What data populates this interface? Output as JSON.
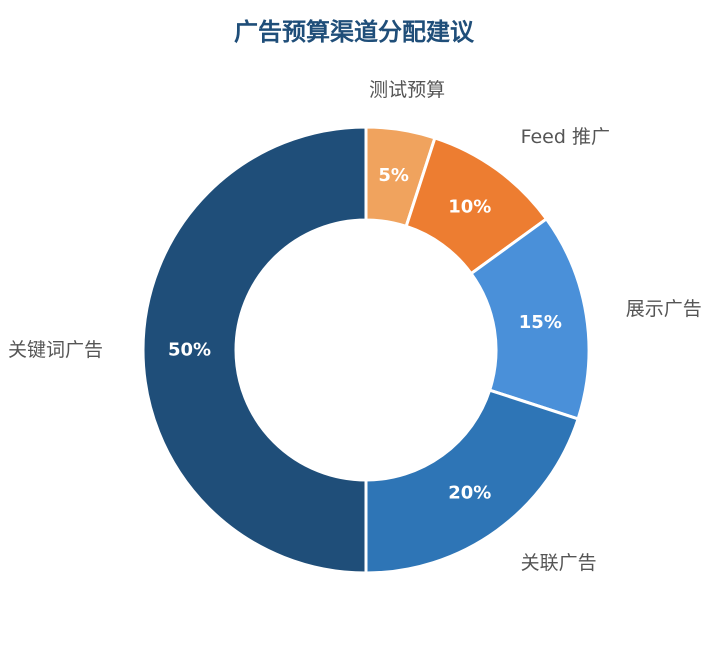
{
  "chart_data": {
    "type": "pie",
    "title": "广告预算渠道分配建议",
    "categories": [
      "测试预算",
      "Feed 推广",
      "展示广告",
      "关联广告",
      "关键词广告"
    ],
    "values": [
      5,
      10,
      15,
      20,
      50
    ],
    "value_labels": [
      "5%",
      "10%",
      "15%",
      "20%",
      "50%"
    ],
    "colors": [
      "#f0a35e",
      "#ed7d31",
      "#4a90d9",
      "#2e75b6",
      "#1f4e79"
    ],
    "donut": true,
    "start": "top, clockwise"
  }
}
